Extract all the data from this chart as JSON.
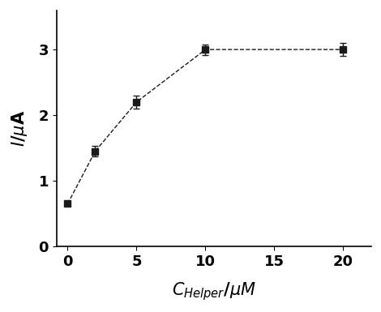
{
  "x": [
    0,
    2,
    5,
    10,
    20
  ],
  "y": [
    0.65,
    1.45,
    2.2,
    3.0,
    3.0
  ],
  "yerr": [
    0.0,
    0.08,
    0.1,
    0.08,
    0.1
  ],
  "xlim": [
    -0.8,
    22
  ],
  "ylim": [
    0,
    3.6
  ],
  "xticks": [
    0,
    5,
    10,
    15,
    20
  ],
  "yticks": [
    0,
    1,
    2,
    3
  ],
  "line_color": "#1a1a1a",
  "marker": "s",
  "marker_size": 6,
  "marker_color": "#1a1a1a",
  "line_width": 1.0,
  "linestyle": "--",
  "capsize": 3,
  "elinewidth": 1.0,
  "background_color": "#ffffff",
  "xlabel_fontsize": 15,
  "ylabel_fontsize": 15,
  "tick_fontsize": 13,
  "tick_fontweight": "bold"
}
